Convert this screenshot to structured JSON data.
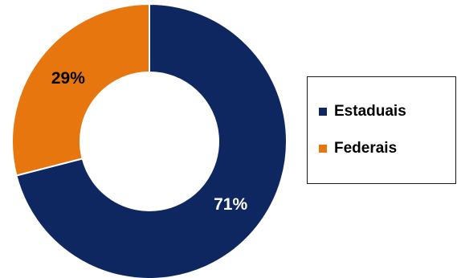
{
  "chart_data": {
    "type": "pie",
    "variant": "donut",
    "categories": [
      "Estaduais",
      "Federais"
    ],
    "values": [
      71,
      29
    ],
    "value_labels": [
      "71%",
      "29%"
    ],
    "colors": [
      "#0F2760",
      "#E8760F"
    ],
    "label_colors": [
      "#ffffff",
      "#000000"
    ],
    "start": "12 o'clock",
    "direction": "clockwise",
    "legend": {
      "position": "right",
      "entries": [
        {
          "label": "Estaduais",
          "color": "#0F2760"
        },
        {
          "label": "Federais",
          "color": "#E8760F"
        }
      ]
    }
  }
}
